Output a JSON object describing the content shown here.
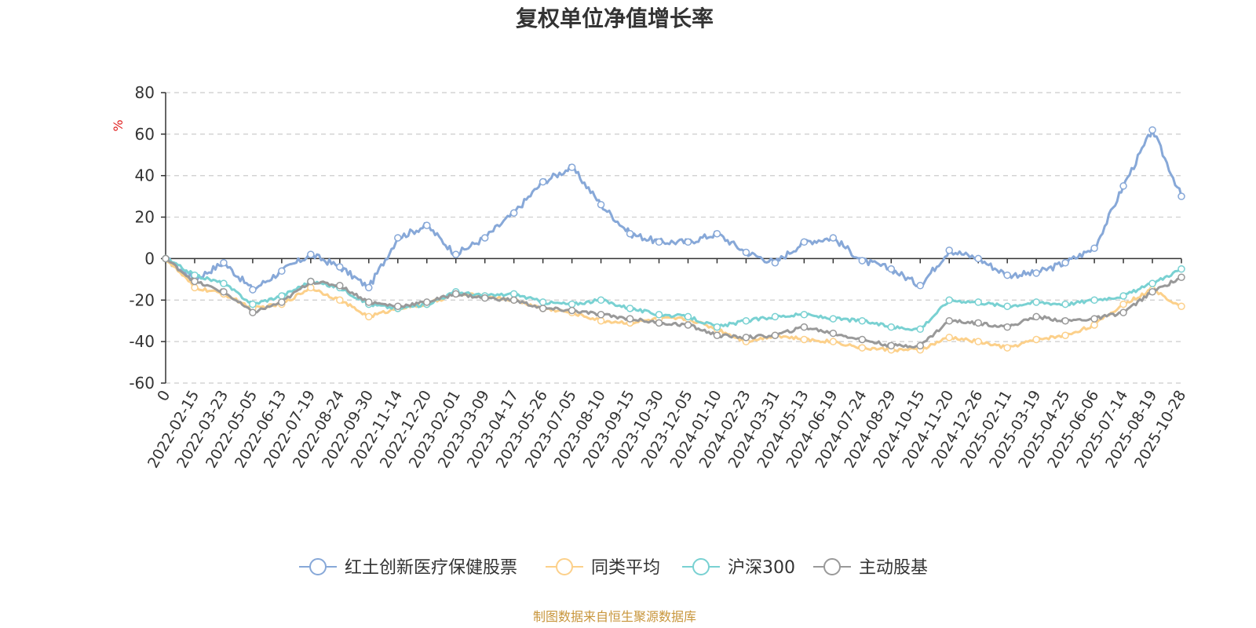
{
  "chart_data": {
    "type": "line",
    "title": "复权单位净值增长率",
    "unit": "%",
    "ylim": [
      -60,
      80
    ],
    "y_ticks": [
      80,
      60,
      40,
      20,
      0,
      -20,
      -40,
      -60
    ],
    "x_ticks": [
      "0",
      "2022-02-15",
      "2022-03-23",
      "2022-05-05",
      "2022-06-13",
      "2022-07-19",
      "2022-08-24",
      "2022-09-30",
      "2022-11-14",
      "2022-12-20",
      "2023-02-01",
      "2023-03-09",
      "2023-04-17",
      "2023-05-26",
      "2023-07-05",
      "2023-08-10",
      "2023-09-15",
      "2023-10-30",
      "2023-12-05",
      "2024-01-10",
      "2024-02-23",
      "2024-03-31",
      "2024-05-13",
      "2024-06-19",
      "2024-07-24",
      "2024-08-29",
      "2024-10-15",
      "2024-11-20",
      "2024-12-26",
      "2025-02-11",
      "2025-03-19",
      "2025-04-25",
      "2025-06-06",
      "2025-07-14",
      "2025-08-19",
      "2025-10-28"
    ],
    "grid": "horizontal-dashed",
    "legend_position": "bottom",
    "x": [
      "0",
      "2022-02-15",
      "2022-03-23",
      "2022-05-05",
      "2022-06-13",
      "2022-07-19",
      "2022-08-24",
      "2022-09-30",
      "2022-11-14",
      "2022-12-20",
      "2023-02-01",
      "2023-03-09",
      "2023-04-17",
      "2023-05-26",
      "2023-07-05",
      "2023-08-10",
      "2023-09-15",
      "2023-10-30",
      "2023-12-05",
      "2024-01-10",
      "2024-02-23",
      "2024-03-31",
      "2024-05-13",
      "2024-06-19",
      "2024-07-24",
      "2024-08-29",
      "2024-10-15",
      "2024-11-20",
      "2024-12-26",
      "2025-02-11",
      "2025-03-19",
      "2025-04-25",
      "2025-06-06",
      "2025-07-14",
      "2025-08-19",
      "2025-10-28"
    ],
    "series": [
      {
        "name": "红土创新医疗保健股票",
        "color": "#87a8d8",
        "values": [
          0,
          -10,
          -2,
          -15,
          -6,
          2,
          -4,
          -14,
          10,
          16,
          2,
          10,
          22,
          37,
          44,
          26,
          12,
          8,
          8,
          12,
          3,
          -2,
          8,
          10,
          -1,
          -5,
          -13,
          4,
          0,
          -8,
          -7,
          -2,
          5,
          35,
          62,
          30
        ]
      },
      {
        "name": "同类平均",
        "color": "#fcd08a",
        "values": [
          0,
          -14,
          -17,
          -24,
          -22,
          -14,
          -20,
          -28,
          -24,
          -22,
          -17,
          -18,
          -20,
          -24,
          -26,
          -30,
          -31,
          -29,
          -29,
          -34,
          -40,
          -37,
          -39,
          -40,
          -43,
          -44,
          -44,
          -38,
          -40,
          -43,
          -39,
          -37,
          -32,
          -22,
          -15,
          -23
        ]
      },
      {
        "name": "沪深300",
        "color": "#79d1d2",
        "values": [
          0,
          -8,
          -12,
          -22,
          -18,
          -11,
          -14,
          -22,
          -24,
          -22,
          -16,
          -18,
          -17,
          -21,
          -22,
          -20,
          -24,
          -27,
          -28,
          -33,
          -30,
          -28,
          -27,
          -29,
          -30,
          -33,
          -34,
          -20,
          -21,
          -23,
          -21,
          -22,
          -20,
          -18,
          -12,
          -5
        ]
      },
      {
        "name": "主动股基",
        "color": "#999999",
        "values": [
          0,
          -11,
          -16,
          -26,
          -21,
          -11,
          -13,
          -21,
          -23,
          -21,
          -17,
          -19,
          -20,
          -24,
          -25,
          -27,
          -29,
          -31,
          -32,
          -37,
          -38,
          -37,
          -33,
          -36,
          -39,
          -42,
          -42,
          -30,
          -31,
          -33,
          -28,
          -30,
          -29,
          -26,
          -16,
          -9
        ]
      }
    ],
    "source": "制图数据来自恒生聚源数据库"
  }
}
